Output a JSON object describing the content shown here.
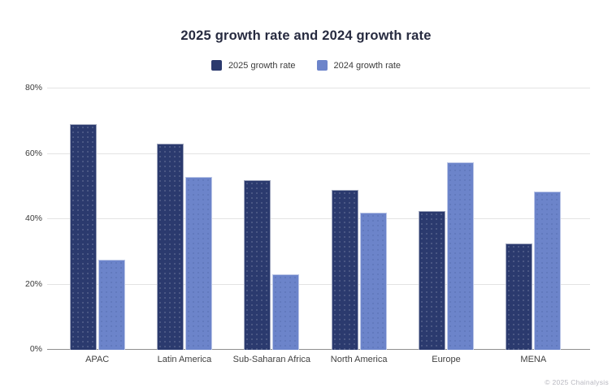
{
  "footer": "© 2025 Chainalysis",
  "chart_data": {
    "type": "bar",
    "title": "2025 growth rate and 2024 growth rate",
    "categories": [
      "APAC",
      "Latin America",
      "Sub-Saharan Africa",
      "North America",
      "Europe",
      "MENA"
    ],
    "series": [
      {
        "name": "2025 growth rate",
        "color": "#2B3A6E",
        "values": [
          69,
          63,
          52,
          49,
          42.5,
          32.5
        ]
      },
      {
        "name": "2024 growth rate",
        "color": "#6C84CA",
        "values": [
          27.5,
          53,
          23,
          42,
          57.5,
          48.5
        ]
      }
    ],
    "xlabel": "",
    "ylabel": "",
    "ylim": [
      0,
      80
    ],
    "yticks": [
      0,
      20,
      40,
      60,
      80
    ],
    "ytick_format": "percent",
    "grid": true,
    "legend_position": "top"
  },
  "colors": {
    "background": "#FFFFFF",
    "title": "#272B40",
    "grid": "#E3E3E3",
    "baseline": "#8F8F8F",
    "tick_label": "#3A3A3A",
    "category_label": "#3F3F3F",
    "footer": "#B8B8C0"
  }
}
